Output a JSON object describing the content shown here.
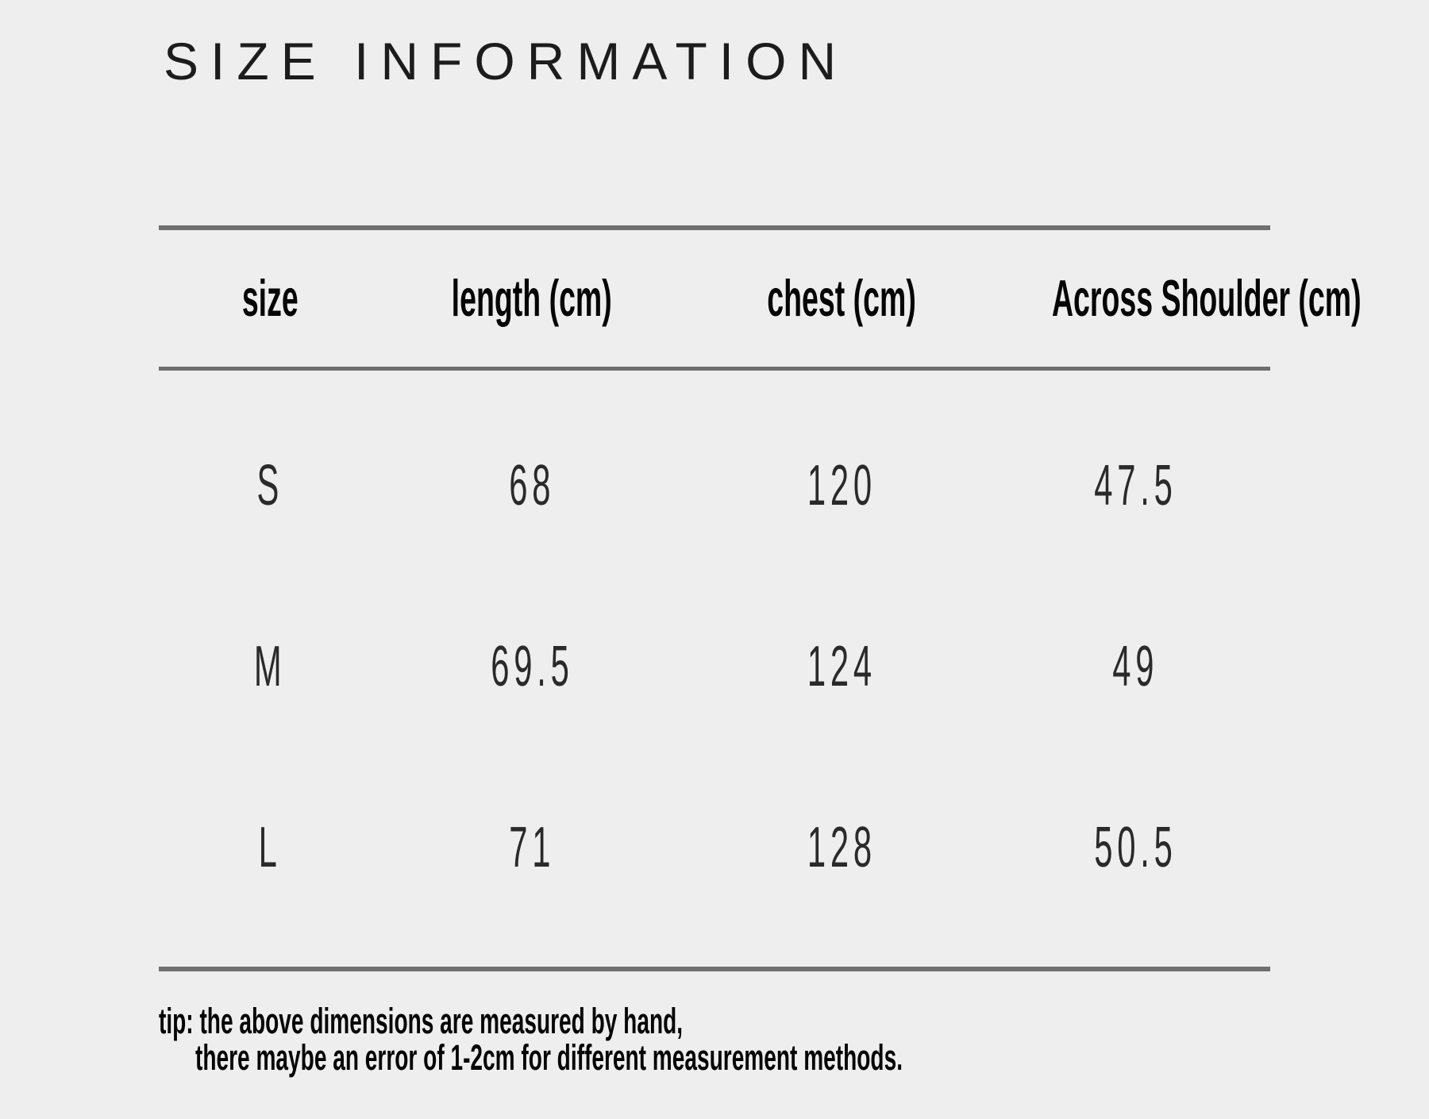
{
  "header": {
    "title": "SIZE INFORMATION"
  },
  "table": {
    "columns": [
      "size",
      "length (cm)",
      "chest (cm)",
      "Across Shoulder (cm)"
    ],
    "rows": [
      {
        "size": "S",
        "length": "68",
        "chest": "120",
        "shoulder": "47.5"
      },
      {
        "size": "M",
        "length": "69.5",
        "chest": "124",
        "shoulder": "49"
      },
      {
        "size": "L",
        "length": "71",
        "chest": "128",
        "shoulder": "50.5"
      }
    ]
  },
  "tip": {
    "line1": "tip: the above dimensions are measured by hand,",
    "line2": "there maybe an error of 1-2cm for different measurement methods."
  },
  "chart_data": {
    "type": "table",
    "title": "SIZE INFORMATION",
    "columns": [
      "size",
      "length (cm)",
      "chest (cm)",
      "Across Shoulder (cm)"
    ],
    "rows": [
      [
        "S",
        68,
        120,
        47.5
      ],
      [
        "M",
        69.5,
        124,
        49
      ],
      [
        "L",
        71,
        128,
        50.5
      ]
    ],
    "note": "tip: the above dimensions are measured by hand, there maybe an error of 1-2cm for different measurement methods."
  },
  "colors": {
    "background": "#eeeeee",
    "rule": "#6f6f6f",
    "heading_text": "#050505",
    "data_text": "#2a2a2a"
  }
}
